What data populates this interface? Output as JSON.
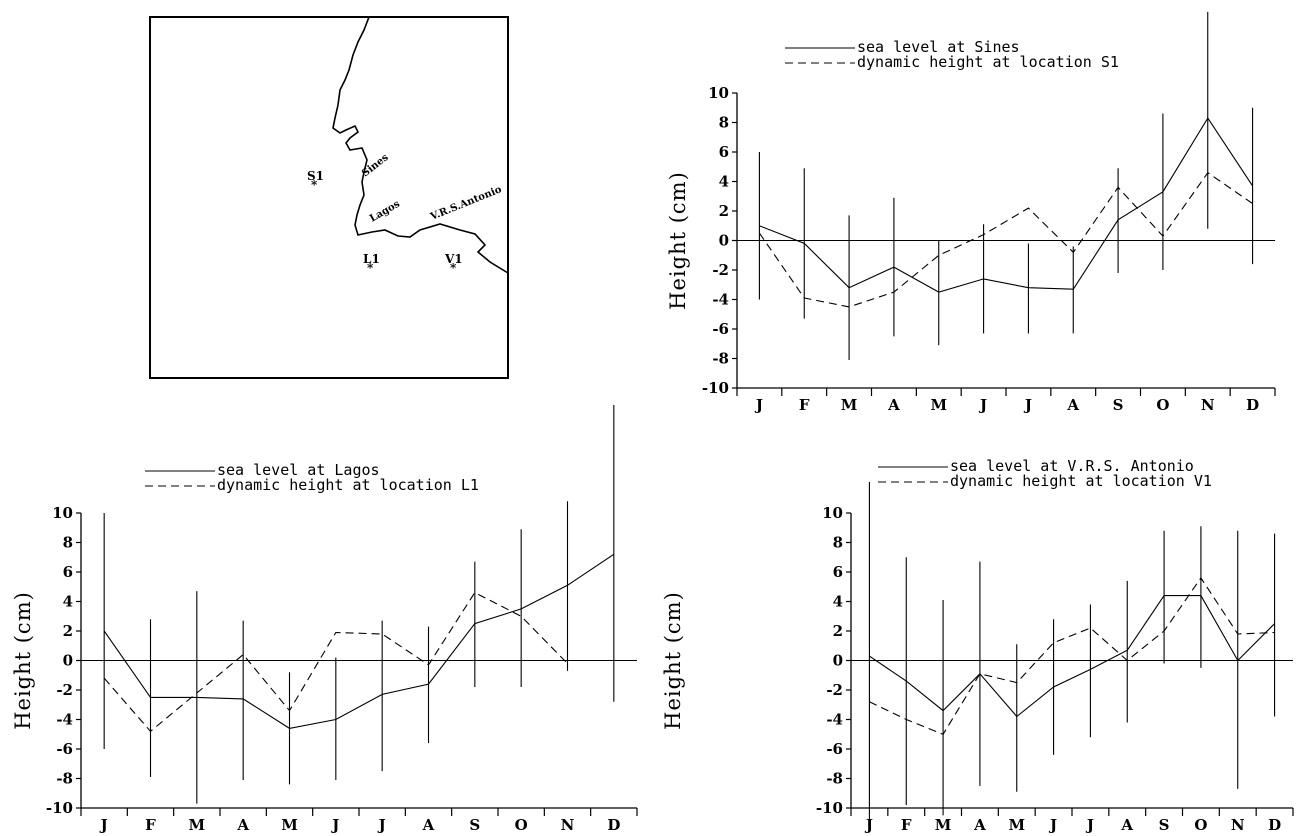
{
  "chart_data": [
    {
      "type": "line",
      "panel": "top-right",
      "categories": [
        "J",
        "F",
        "M",
        "A",
        "M",
        "J",
        "J",
        "A",
        "S",
        "O",
        "N",
        "D"
      ],
      "ylabel": "Height  (cm)",
      "ylim": [
        -10,
        10
      ],
      "yticks": [
        10,
        8,
        6,
        4,
        2,
        0,
        -2,
        -4,
        -6,
        -8,
        -10
      ],
      "zero_line": true,
      "legend_position": "top",
      "series": [
        {
          "name": "sea level at Sines",
          "style": "solid",
          "values": [
            1.0,
            -0.2,
            -3.2,
            -1.8,
            -3.5,
            -2.6,
            -3.2,
            -3.3,
            1.4,
            3.3,
            8.3,
            3.7
          ],
          "error_low": [
            -4.0,
            -5.3,
            -8.1,
            -6.5,
            -7.1,
            -6.3,
            -6.3,
            -6.3,
            -2.2,
            -2.0,
            0.8,
            -1.6
          ],
          "error_high": [
            6.0,
            4.9,
            1.7,
            2.9,
            0.0,
            1.1,
            -0.2,
            -0.4,
            4.9,
            8.6,
            15.5,
            9.0
          ]
        },
        {
          "name": "dynamic height at location S1",
          "style": "dashed",
          "values": [
            0.5,
            -3.9,
            -4.5,
            -3.5,
            -1.0,
            0.4,
            2.2,
            -0.8,
            3.6,
            0.3,
            4.6,
            2.5
          ]
        }
      ]
    },
    {
      "type": "line",
      "panel": "bottom-left",
      "categories": [
        "J",
        "F",
        "M",
        "A",
        "M",
        "J",
        "J",
        "A",
        "S",
        "O",
        "N",
        "D"
      ],
      "ylabel": "Height  (cm)",
      "ylim": [
        -10,
        10
      ],
      "yticks": [
        10,
        8,
        6,
        4,
        2,
        0,
        -2,
        -4,
        -6,
        -8,
        -10
      ],
      "zero_line": true,
      "legend_position": "top",
      "series": [
        {
          "name": "sea level at Lagos",
          "style": "solid",
          "values": [
            2.0,
            -2.5,
            -2.5,
            -2.6,
            -4.6,
            -4.0,
            -2.3,
            -1.6,
            2.5,
            3.5,
            5.1,
            7.2
          ],
          "error_low": [
            -6.0,
            -7.9,
            -9.7,
            -8.1,
            -8.4,
            -8.1,
            -7.5,
            -5.6,
            -1.8,
            -1.8,
            -0.7,
            -2.8
          ],
          "error_high": [
            10.0,
            2.8,
            4.7,
            2.7,
            -0.8,
            0.2,
            2.7,
            2.3,
            6.7,
            8.9,
            10.8,
            17.6
          ]
        },
        {
          "name": "dynamic height at location L1",
          "style": "dashed",
          "values": [
            -1.2,
            -4.8,
            -2.2,
            0.4,
            -3.4,
            1.9,
            1.8,
            -0.3,
            4.6,
            3.0,
            -0.2,
            null
          ]
        }
      ]
    },
    {
      "type": "line",
      "panel": "bottom-right",
      "categories": [
        "J",
        "F",
        "M",
        "A",
        "M",
        "J",
        "J",
        "A",
        "S",
        "O",
        "N",
        "D"
      ],
      "ylabel": "Height  (cm)",
      "ylim": [
        -10,
        10
      ],
      "yticks": [
        10,
        8,
        6,
        4,
        2,
        0,
        -2,
        -4,
        -6,
        -8,
        -10
      ],
      "zero_line": true,
      "legend_position": "top",
      "series": [
        {
          "name": "sea level at V.R.S. Antonio",
          "style": "solid",
          "values": [
            0.3,
            -1.4,
            -3.4,
            -0.9,
            -3.8,
            -1.8,
            -0.6,
            0.7,
            4.4,
            4.4,
            0.0,
            2.5
          ],
          "error_low": [
            -11.5,
            -9.8,
            -10.5,
            -8.5,
            -8.9,
            -6.4,
            -5.2,
            -4.2,
            -0.2,
            -0.5,
            -8.7,
            -3.8
          ],
          "error_high": [
            12.1,
            7.0,
            4.1,
            6.7,
            1.1,
            2.8,
            3.8,
            5.4,
            8.8,
            9.1,
            8.8,
            8.6
          ]
        },
        {
          "name": "dynamic height at location V1",
          "style": "dashed",
          "values": [
            -2.8,
            -4.0,
            -5.0,
            -0.9,
            -1.5,
            1.2,
            2.2,
            0.0,
            2.0,
            5.6,
            1.8,
            1.9
          ]
        }
      ]
    }
  ],
  "map": {
    "places": [
      "Sines",
      "Lagos",
      "V.R.S.Antonio"
    ],
    "stations": [
      "S1",
      "L1",
      "V1"
    ],
    "marker": "*"
  }
}
